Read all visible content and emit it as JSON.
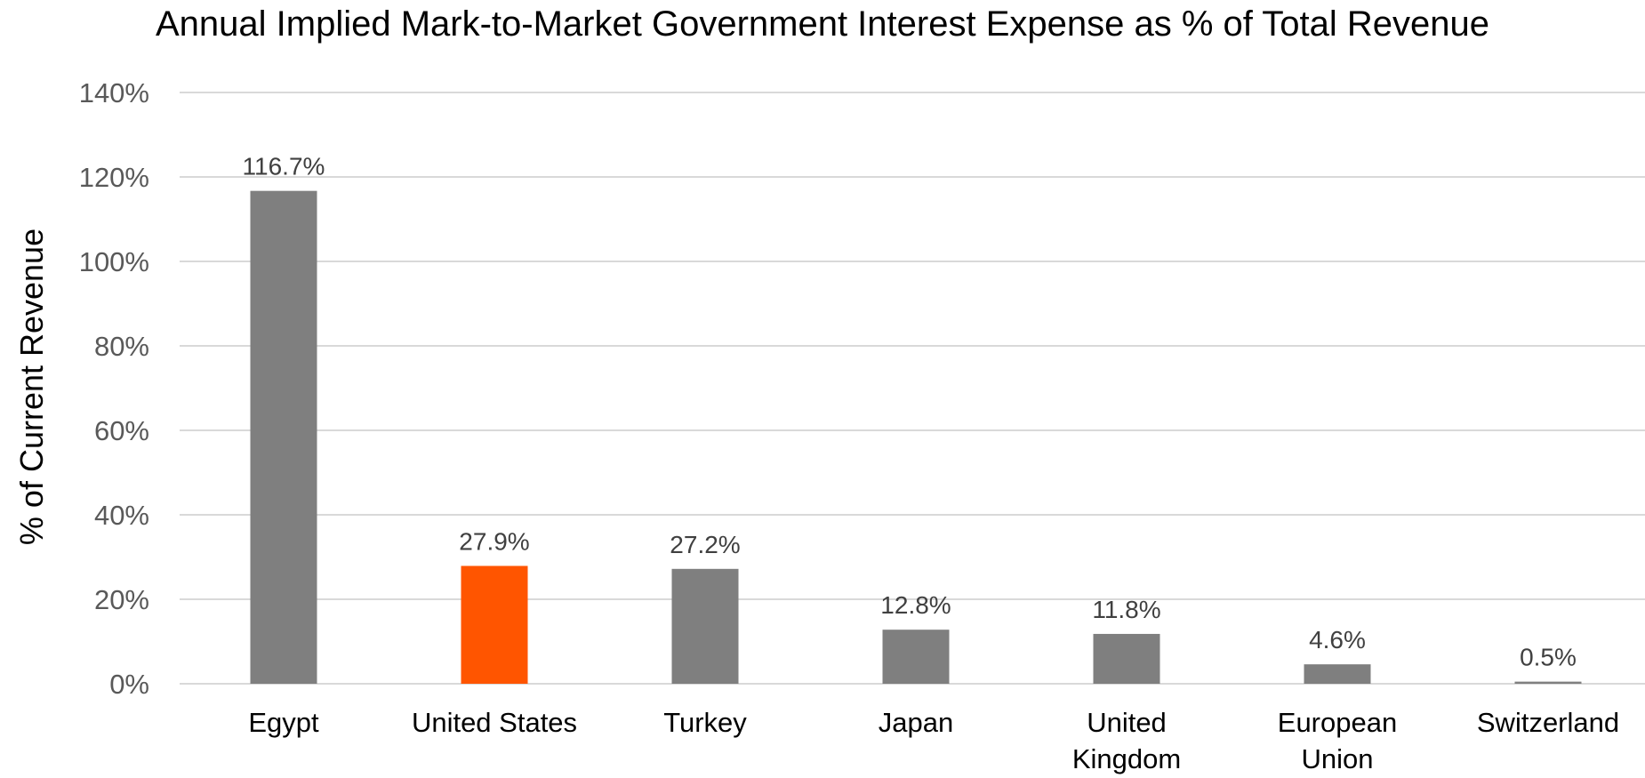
{
  "chart_data": {
    "type": "bar",
    "title": "Annual Implied Mark-to-Market Government Interest Expense as % of Total Revenue",
    "xlabel": "",
    "ylabel": "% of Current Revenue",
    "categories": [
      "Egypt",
      "United States",
      "Turkey",
      "Japan",
      "United Kingdom",
      "European Union",
      "Switzerland"
    ],
    "category_lines": [
      [
        "Egypt"
      ],
      [
        "United States"
      ],
      [
        "Turkey"
      ],
      [
        "Japan"
      ],
      [
        "United",
        "Kingdom"
      ],
      [
        "European",
        "Union"
      ],
      [
        "Switzerland"
      ]
    ],
    "values": [
      116.7,
      27.9,
      27.2,
      12.8,
      11.8,
      4.6,
      0.5
    ],
    "data_labels": [
      "116.7%",
      "27.9%",
      "27.2%",
      "12.8%",
      "11.8%",
      "4.6%",
      "0.5%"
    ],
    "yticks": [
      0,
      20,
      40,
      60,
      80,
      100,
      120,
      140
    ],
    "ytick_labels": [
      "0%",
      "20%",
      "40%",
      "60%",
      "80%",
      "100%",
      "120%",
      "140%"
    ],
    "ylim": [
      0,
      140
    ],
    "grid": true,
    "legend": "none",
    "colors": {
      "default_bar": "#7f7f7f",
      "highlight_bar": "#ff5500",
      "highlight_category": "United States"
    }
  }
}
